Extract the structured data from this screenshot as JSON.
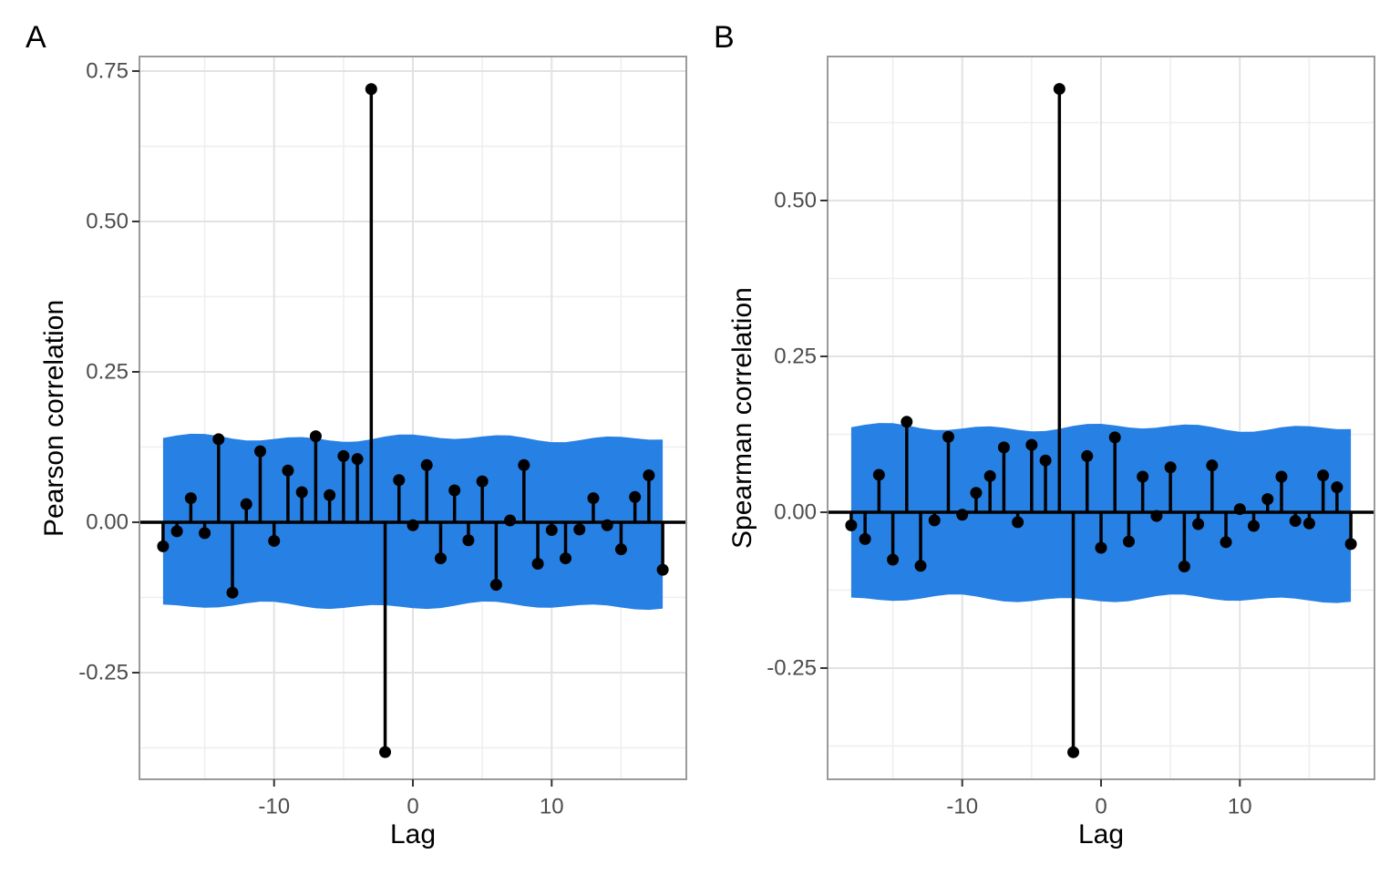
{
  "figure": {
    "background": "#FFFFFF",
    "colors": {
      "ribbon": "#2780E3",
      "stem": "#000000",
      "point": "#000000",
      "zero_line": "#000000",
      "grid_major": "#E2E2E2",
      "grid_minor": "#EFEFEF",
      "panel_border": "#9A9A9A",
      "tick_mark": "#333333",
      "tick_label": "#4D4D4D",
      "title_text": "#000000"
    }
  },
  "chart_data": [
    {
      "type": "scatter",
      "subtype": "stem-lollipop-ccf",
      "tag": "A",
      "title": "",
      "xlabel": "Lag",
      "ylabel": "Pearson correlation",
      "xlim": [
        -19.7,
        19.7
      ],
      "ylim": [
        -0.4273,
        0.7742
      ],
      "x_ticks": [
        -10,
        0,
        10
      ],
      "x_tick_labels": [
        "-10",
        "0",
        "10"
      ],
      "x_minor_ticks": [
        -15,
        -5,
        5,
        15
      ],
      "y_ticks": [
        0.75,
        0.5,
        0.25,
        0.0,
        -0.25
      ],
      "y_tick_labels": [
        "0.75",
        "0.50",
        "0.25",
        "0.00",
        "-0.25"
      ],
      "y_minor_ticks": [
        0.625,
        0.375,
        0.125,
        -0.125,
        -0.375
      ],
      "grid": true,
      "legend": "none",
      "ci_band": {
        "upper": 0.14,
        "lower": -0.139
      },
      "lags": [
        -18,
        -17,
        -16,
        -15,
        -14,
        -13,
        -12,
        -11,
        -10,
        -9,
        -8,
        -7,
        -6,
        -5,
        -4,
        -3,
        -2,
        -1,
        0,
        1,
        2,
        3,
        4,
        5,
        6,
        7,
        8,
        9,
        10,
        11,
        12,
        13,
        14,
        15,
        16,
        17,
        18
      ],
      "values": [
        -0.04,
        -0.015,
        0.04,
        -0.018,
        0.138,
        -0.117,
        0.03,
        0.118,
        -0.031,
        0.086,
        0.05,
        0.143,
        0.045,
        0.11,
        0.105,
        0.72,
        -0.382,
        0.07,
        -0.005,
        0.095,
        -0.06,
        0.053,
        -0.03,
        0.068,
        -0.104,
        0.003,
        0.095,
        -0.069,
        -0.013,
        -0.06,
        -0.012,
        0.04,
        -0.005,
        -0.045,
        0.042,
        0.078,
        -0.079
      ]
    },
    {
      "type": "scatter",
      "subtype": "stem-lollipop-ccf",
      "tag": "B",
      "title": "",
      "xlabel": "Lag",
      "ylabel": "Spearman correlation",
      "xlim": [
        -19.7,
        19.7
      ],
      "ylim": [
        -0.4284,
        0.731
      ],
      "x_ticks": [
        -10,
        0,
        10
      ],
      "x_tick_labels": [
        "-10",
        "0",
        "10"
      ],
      "x_minor_ticks": [
        -15,
        -5,
        5,
        15
      ],
      "y_ticks": [
        0.5,
        0.25,
        0.0,
        -0.25
      ],
      "y_tick_labels": [
        "0.50",
        "0.25",
        "0.00",
        "-0.25"
      ],
      "y_minor_ticks": [
        0.625,
        0.375,
        0.125,
        -0.125,
        -0.375
      ],
      "grid": true,
      "legend": "none",
      "ci_band": {
        "upper": 0.136,
        "lower": -0.139
      },
      "lags": [
        -18,
        -17,
        -16,
        -15,
        -14,
        -13,
        -12,
        -11,
        -10,
        -9,
        -8,
        -7,
        -6,
        -5,
        -4,
        -3,
        -2,
        -1,
        0,
        1,
        2,
        3,
        4,
        5,
        6,
        7,
        8,
        9,
        10,
        11,
        12,
        13,
        14,
        15,
        16,
        17,
        18
      ],
      "values": [
        -0.021,
        -0.043,
        0.06,
        -0.076,
        0.145,
        -0.086,
        -0.013,
        0.121,
        -0.004,
        0.031,
        0.058,
        0.104,
        -0.016,
        0.108,
        0.083,
        0.679,
        -0.385,
        0.09,
        -0.057,
        0.12,
        -0.047,
        0.057,
        -0.006,
        0.072,
        -0.087,
        -0.019,
        0.075,
        -0.048,
        0.005,
        -0.022,
        0.021,
        0.057,
        -0.014,
        -0.018,
        0.059,
        0.04,
        -0.051
      ]
    }
  ]
}
